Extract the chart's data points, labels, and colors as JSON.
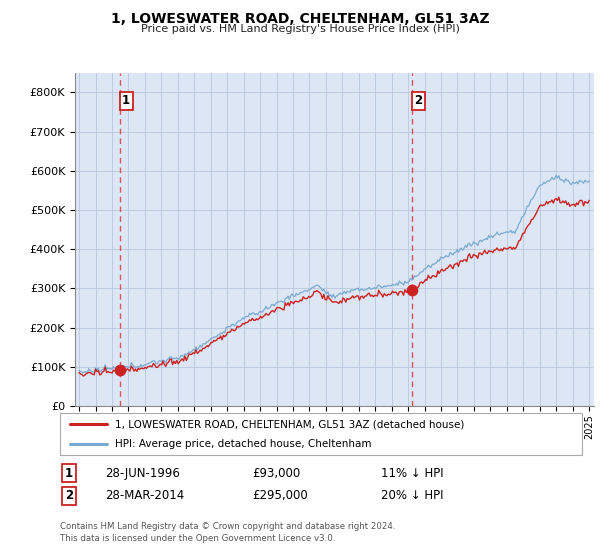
{
  "title": "1, LOWESWATER ROAD, CHELTENHAM, GL51 3AZ",
  "subtitle": "Price paid vs. HM Land Registry's House Price Index (HPI)",
  "ylim": [
    0,
    850000
  ],
  "xlim_start": 1993.75,
  "xlim_end": 2025.3,
  "plot_bg_color": "#dce6f5",
  "grid_color": "#b8c8de",
  "hpi_color": "#7aaad0",
  "price_color": "#cc2222",
  "marker1_x": 1996.49,
  "marker1_y": 93000,
  "marker2_x": 2014.24,
  "marker2_y": 295000,
  "dashed_line_color": "#dd4444",
  "legend_line1": "1, LOWESWATER ROAD, CHELTENHAM, GL51 3AZ (detached house)",
  "legend_line2": "HPI: Average price, detached house, Cheltenham",
  "note1_date": "28-JUN-1996",
  "note1_price": "£93,000",
  "note1_hpi": "11% ↓ HPI",
  "note2_date": "28-MAR-2014",
  "note2_price": "£295,000",
  "note2_hpi": "20% ↓ HPI",
  "footer": "Contains HM Land Registry data © Crown copyright and database right 2024.\nThis data is licensed under the Open Government Licence v3.0.",
  "yticks": [
    0,
    100000,
    200000,
    300000,
    400000,
    500000,
    600000,
    700000,
    800000
  ]
}
